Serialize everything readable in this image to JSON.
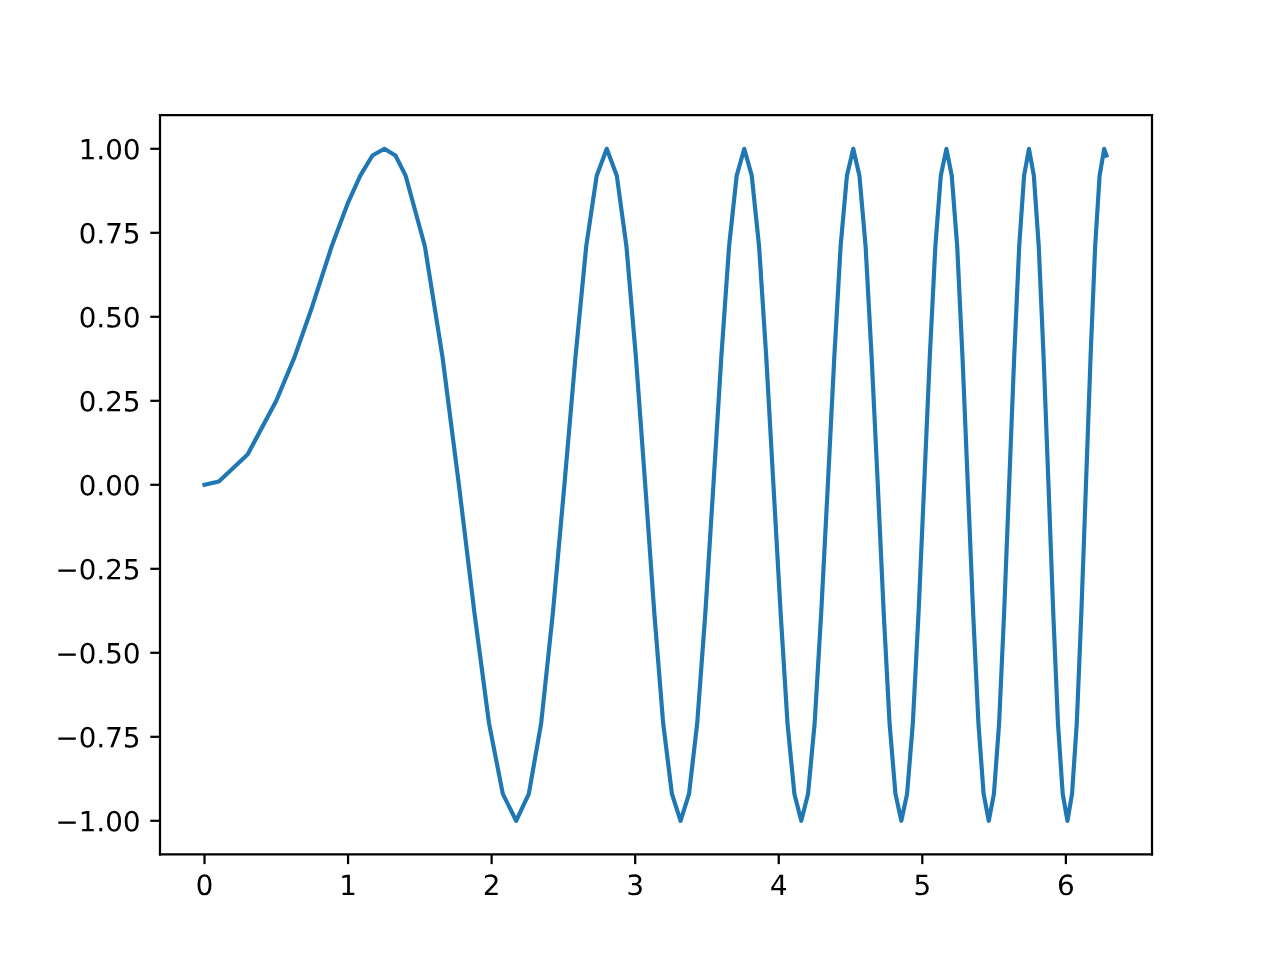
{
  "chart_data": {
    "type": "line",
    "xlim": [
      -0.31,
      6.6
    ],
    "ylim": [
      -1.1,
      1.1
    ],
    "xticks": [
      0,
      1,
      2,
      3,
      4,
      5,
      6
    ],
    "yticks": [
      {
        "value": -1,
        "label": "−1.00"
      },
      {
        "value": -0.75,
        "label": "−0.75"
      },
      {
        "value": -0.5,
        "label": "−0.50"
      },
      {
        "value": -0.25,
        "label": "−0.25"
      },
      {
        "value": 0,
        "label": "0.00"
      },
      {
        "value": 0.25,
        "label": "0.25"
      },
      {
        "value": 0.5,
        "label": "0.50"
      },
      {
        "value": 0.75,
        "label": "0.75"
      },
      {
        "value": 1,
        "label": "1.00"
      }
    ],
    "grid": false,
    "legend": false,
    "series": [
      {
        "color": "#1f77b4",
        "x": [
          0,
          0.1,
          0.3,
          0.5,
          0.627,
          0.75,
          0.886,
          1.0,
          1.085,
          1.17,
          1.253,
          1.33,
          1.401,
          1.535,
          1.658,
          1.772,
          1.88,
          1.982,
          2.078,
          2.171,
          2.259,
          2.345,
          2.427,
          2.507,
          2.584,
          2.659,
          2.732,
          2.802,
          2.872,
          2.939,
          3.005,
          3.07,
          3.133,
          3.195,
          3.256,
          3.316,
          3.375,
          3.432,
          3.489,
          3.545,
          3.6,
          3.654,
          3.707,
          3.76,
          3.812,
          3.863,
          3.913,
          3.963,
          4.013,
          4.061,
          4.109,
          4.157,
          4.204,
          4.25,
          4.296,
          4.342,
          4.387,
          4.431,
          4.475,
          4.519,
          4.562,
          4.605,
          4.647,
          4.69,
          4.731,
          4.772,
          4.813,
          4.854,
          4.894,
          4.934,
          4.974,
          5.013,
          5.052,
          5.091,
          5.129,
          5.168,
          5.205,
          5.243,
          5.28,
          5.317,
          5.354,
          5.391,
          5.427,
          5.463,
          5.499,
          5.535,
          5.57,
          5.605,
          5.64,
          5.675,
          5.709,
          5.743,
          5.777,
          5.811,
          5.845,
          5.879,
          5.912,
          5.945,
          5.978,
          6.011,
          6.043,
          6.076,
          6.108,
          6.14,
          6.172,
          6.204,
          6.235,
          6.267,
          6.283
        ],
        "values": [
          0,
          0.01,
          0.09,
          0.25,
          0.38,
          0.53,
          0.71,
          0.84,
          0.92,
          0.98,
          1,
          0.98,
          0.92,
          0.71,
          0.38,
          0,
          -0.38,
          -0.71,
          -0.92,
          -1,
          -0.92,
          -0.71,
          -0.38,
          0,
          0.38,
          0.71,
          0.92,
          1,
          0.92,
          0.71,
          0.38,
          0,
          -0.38,
          -0.71,
          -0.92,
          -1,
          -0.92,
          -0.71,
          -0.38,
          0,
          0.38,
          0.71,
          0.92,
          1,
          0.92,
          0.71,
          0.38,
          0,
          -0.38,
          -0.71,
          -0.92,
          -1,
          -0.92,
          -0.71,
          -0.38,
          0,
          0.38,
          0.71,
          0.92,
          1,
          0.92,
          0.71,
          0.38,
          0,
          -0.38,
          -0.71,
          -0.92,
          -1,
          -0.92,
          -0.71,
          -0.38,
          0,
          0.38,
          0.71,
          0.92,
          1,
          0.92,
          0.71,
          0.38,
          0,
          -0.38,
          -0.71,
          -0.92,
          -1,
          -0.92,
          -0.71,
          -0.38,
          0,
          0.38,
          0.71,
          0.92,
          1,
          0.92,
          0.71,
          0.38,
          0,
          -0.38,
          -0.71,
          -0.92,
          -1,
          -0.92,
          -0.71,
          -0.38,
          0,
          0.38,
          0.71,
          0.92,
          1,
          0.98
        ]
      }
    ]
  }
}
